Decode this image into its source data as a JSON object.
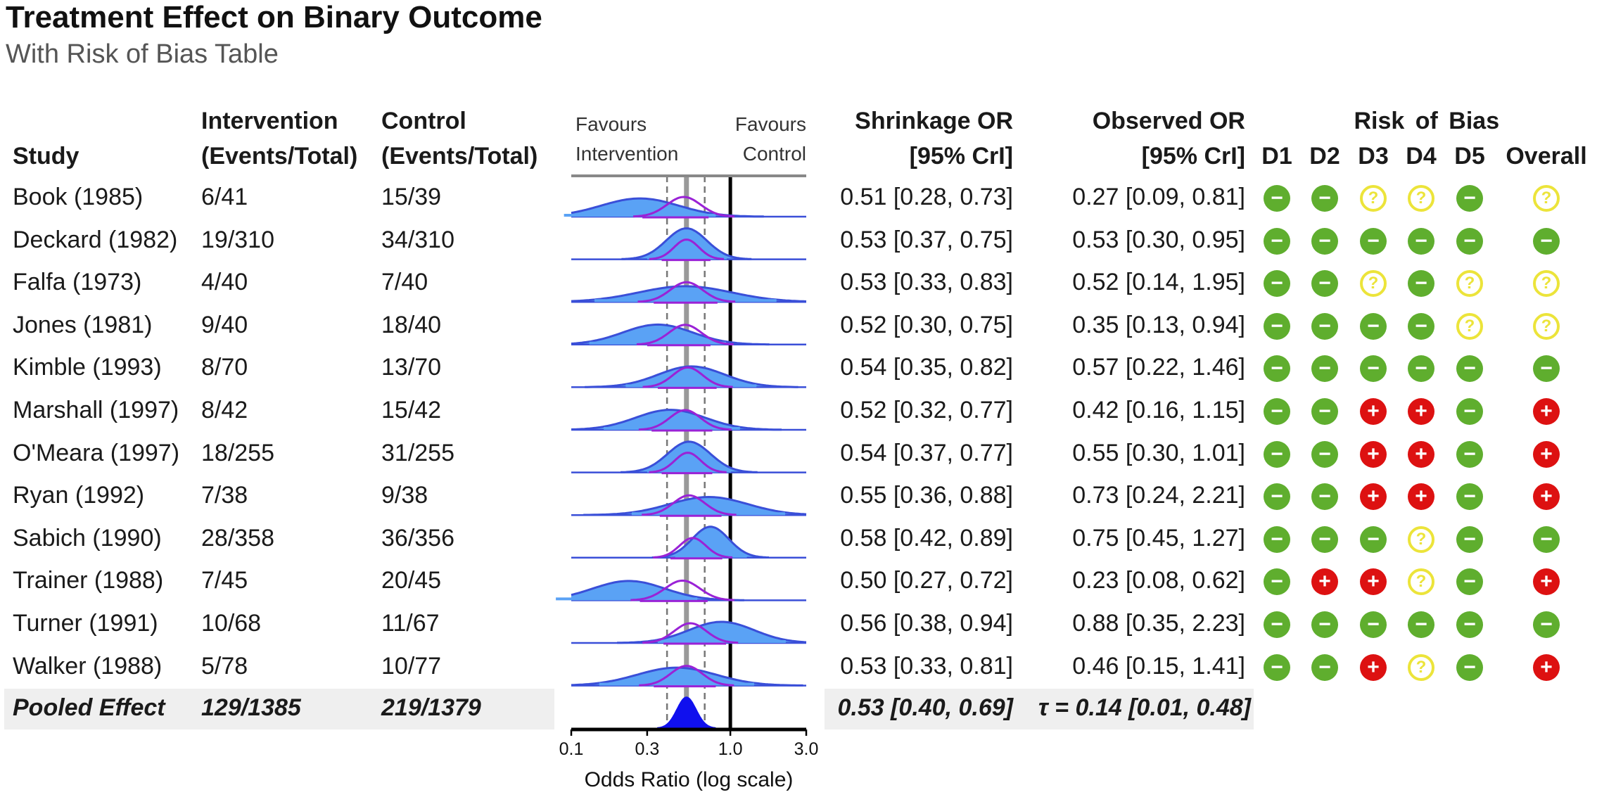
{
  "title": "Treatment Effect on Binary Outcome",
  "subtitle": "With Risk of Bias Table",
  "headers": {
    "study": "Study",
    "intervention_l1": "Intervention",
    "intervention_l2": "(Events/Total)",
    "control_l1": "Control",
    "control_l2": "(Events/Total)",
    "favours_left_l1": "Favours",
    "favours_left_l2": "Intervention",
    "favours_right_l1": "Favours",
    "favours_right_l2": "Control",
    "shrinkage_l1": "Shrinkage OR",
    "shrinkage_l2": "[95% CrI]",
    "observed_l1": "Observed OR",
    "observed_l2": "[95% CrI]",
    "rob_title": "Risk of Bias",
    "rob_domains": [
      "D1",
      "D2",
      "D3",
      "D4",
      "D5",
      "Overall"
    ]
  },
  "studies": [
    {
      "name": "Book (1985)",
      "intervention": "6/41",
      "control": "15/39",
      "shrinkage": "0.51 [0.28, 0.73]",
      "observed": "0.27 [0.09, 0.81]",
      "rob": [
        "low",
        "low",
        "some",
        "some",
        "low",
        "some"
      ]
    },
    {
      "name": "Deckard (1982)",
      "intervention": "19/310",
      "control": "34/310",
      "shrinkage": "0.53 [0.37, 0.75]",
      "observed": "0.53 [0.30, 0.95]",
      "rob": [
        "low",
        "low",
        "low",
        "low",
        "low",
        "low"
      ]
    },
    {
      "name": "Falfa (1973)",
      "intervention": "4/40",
      "control": "7/40",
      "shrinkage": "0.53 [0.33, 0.83]",
      "observed": "0.52 [0.14, 1.95]",
      "rob": [
        "low",
        "low",
        "some",
        "low",
        "some",
        "some"
      ]
    },
    {
      "name": "Jones (1981)",
      "intervention": "9/40",
      "control": "18/40",
      "shrinkage": "0.52 [0.30, 0.75]",
      "observed": "0.35 [0.13, 0.94]",
      "rob": [
        "low",
        "low",
        "low",
        "low",
        "some",
        "some"
      ]
    },
    {
      "name": "Kimble (1993)",
      "intervention": "8/70",
      "control": "13/70",
      "shrinkage": "0.54 [0.35, 0.82]",
      "observed": "0.57 [0.22, 1.46]",
      "rob": [
        "low",
        "low",
        "low",
        "low",
        "low",
        "low"
      ]
    },
    {
      "name": "Marshall (1997)",
      "intervention": "8/42",
      "control": "15/42",
      "shrinkage": "0.52 [0.32, 0.77]",
      "observed": "0.42 [0.16, 1.15]",
      "rob": [
        "low",
        "low",
        "high",
        "high",
        "low",
        "high"
      ]
    },
    {
      "name": "O'Meara (1997)",
      "intervention": "18/255",
      "control": "31/255",
      "shrinkage": "0.54 [0.37, 0.77]",
      "observed": "0.55 [0.30, 1.01]",
      "rob": [
        "low",
        "low",
        "high",
        "high",
        "low",
        "high"
      ]
    },
    {
      "name": "Ryan (1992)",
      "intervention": "7/38",
      "control": "9/38",
      "shrinkage": "0.55 [0.36, 0.88]",
      "observed": "0.73 [0.24, 2.21]",
      "rob": [
        "low",
        "low",
        "high",
        "high",
        "low",
        "high"
      ]
    },
    {
      "name": "Sabich (1990)",
      "intervention": "28/358",
      "control": "36/356",
      "shrinkage": "0.58 [0.42, 0.89]",
      "observed": "0.75 [0.45, 1.27]",
      "rob": [
        "low",
        "low",
        "low",
        "some",
        "low",
        "low"
      ]
    },
    {
      "name": "Trainer (1988)",
      "intervention": "7/45",
      "control": "20/45",
      "shrinkage": "0.50 [0.27, 0.72]",
      "observed": "0.23 [0.08, 0.62]",
      "rob": [
        "low",
        "high",
        "high",
        "some",
        "low",
        "high"
      ]
    },
    {
      "name": "Turner (1991)",
      "intervention": "10/68",
      "control": "11/67",
      "shrinkage": "0.56 [0.38, 0.94]",
      "observed": "0.88 [0.35, 2.23]",
      "rob": [
        "low",
        "low",
        "low",
        "low",
        "low",
        "low"
      ]
    },
    {
      "name": "Walker (1988)",
      "intervention": "5/78",
      "control": "10/77",
      "shrinkage": "0.53 [0.33, 0.81]",
      "observed": "0.46 [0.15, 1.41]",
      "rob": [
        "low",
        "low",
        "high",
        "some",
        "low",
        "high"
      ]
    }
  ],
  "pooled": {
    "name": "Pooled Effect",
    "intervention": "129/1385",
    "control": "219/1379",
    "shrinkage": "0.53 [0.40, 0.69]",
    "tau": "τ = 0.14 [0.01, 0.48]"
  },
  "rob_symbols": {
    "low": "−",
    "some": "?",
    "high": "+"
  },
  "colors": {
    "low": "#5fae2e",
    "some": "#ece43a",
    "high": "#dd1111",
    "observed_fill": "#5aa2f5",
    "observed_line": "#3a4fd8",
    "shrinkage_line": "#9a22d6",
    "pooled_fill": "#1010ee",
    "pooled_line_band": "#999999",
    "ref_line": "#000000"
  },
  "chart_data": {
    "type": "forest-density",
    "xlabel": "Odds Ratio (log scale)",
    "xscale": "log",
    "xlim": [
      0.1,
      3.0
    ],
    "xticks": [
      0.1,
      0.3,
      1.0,
      3.0
    ],
    "xtick_labels": [
      "0.1",
      "0.3",
      "1.0",
      "3.0"
    ],
    "reference_line": 1.0,
    "pooled_estimate": 0.53,
    "pooled_interval": [
      0.4,
      0.69
    ],
    "observed": [
      {
        "study": "Book (1985)",
        "or": 0.27,
        "lo": 0.09,
        "hi": 0.81
      },
      {
        "study": "Deckard (1982)",
        "or": 0.53,
        "lo": 0.3,
        "hi": 0.95
      },
      {
        "study": "Falfa (1973)",
        "or": 0.52,
        "lo": 0.14,
        "hi": 1.95
      },
      {
        "study": "Jones (1981)",
        "or": 0.35,
        "lo": 0.13,
        "hi": 0.94
      },
      {
        "study": "Kimble (1993)",
        "or": 0.57,
        "lo": 0.22,
        "hi": 1.46
      },
      {
        "study": "Marshall (1997)",
        "or": 0.42,
        "lo": 0.16,
        "hi": 1.15
      },
      {
        "study": "O'Meara (1997)",
        "or": 0.55,
        "lo": 0.3,
        "hi": 1.01
      },
      {
        "study": "Ryan (1992)",
        "or": 0.73,
        "lo": 0.24,
        "hi": 2.21
      },
      {
        "study": "Sabich (1990)",
        "or": 0.75,
        "lo": 0.45,
        "hi": 1.27
      },
      {
        "study": "Trainer (1988)",
        "or": 0.23,
        "lo": 0.08,
        "hi": 0.62
      },
      {
        "study": "Turner (1991)",
        "or": 0.88,
        "lo": 0.35,
        "hi": 2.23
      },
      {
        "study": "Walker (1988)",
        "or": 0.46,
        "lo": 0.15,
        "hi": 1.41
      }
    ],
    "shrinkage": [
      {
        "study": "Book (1985)",
        "or": 0.51,
        "lo": 0.28,
        "hi": 0.73
      },
      {
        "study": "Deckard (1982)",
        "or": 0.53,
        "lo": 0.37,
        "hi": 0.75
      },
      {
        "study": "Falfa (1973)",
        "or": 0.53,
        "lo": 0.33,
        "hi": 0.83
      },
      {
        "study": "Jones (1981)",
        "or": 0.52,
        "lo": 0.3,
        "hi": 0.75
      },
      {
        "study": "Kimble (1993)",
        "or": 0.54,
        "lo": 0.35,
        "hi": 0.82
      },
      {
        "study": "Marshall (1997)",
        "or": 0.52,
        "lo": 0.32,
        "hi": 0.77
      },
      {
        "study": "O'Meara (1997)",
        "or": 0.54,
        "lo": 0.37,
        "hi": 0.77
      },
      {
        "study": "Ryan (1992)",
        "or": 0.55,
        "lo": 0.36,
        "hi": 0.88
      },
      {
        "study": "Sabich (1990)",
        "or": 0.58,
        "lo": 0.42,
        "hi": 0.89
      },
      {
        "study": "Trainer (1988)",
        "or": 0.5,
        "lo": 0.27,
        "hi": 0.72
      },
      {
        "study": "Turner (1991)",
        "or": 0.56,
        "lo": 0.38,
        "hi": 0.94
      },
      {
        "study": "Walker (1988)",
        "or": 0.53,
        "lo": 0.33,
        "hi": 0.81
      }
    ]
  }
}
